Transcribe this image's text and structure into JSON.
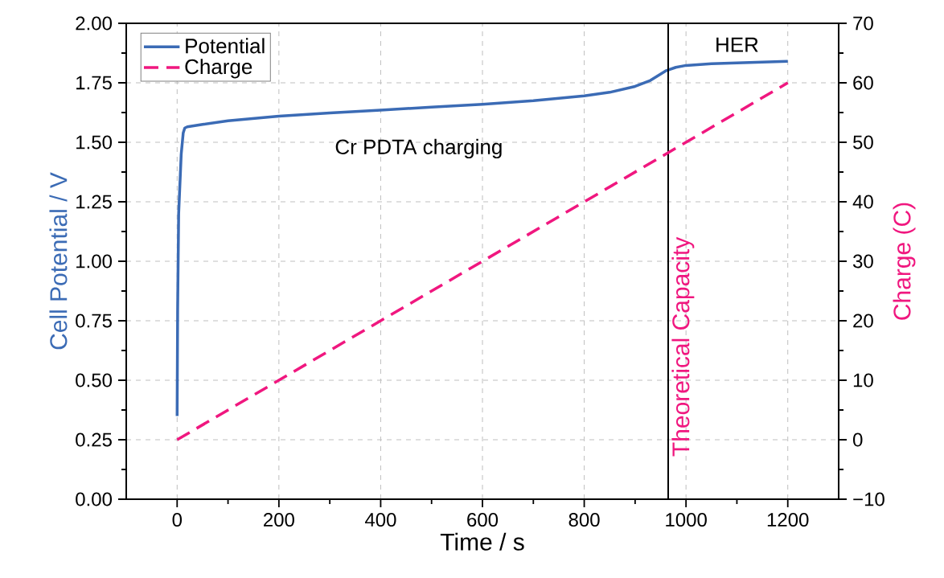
{
  "chart_data": {
    "type": "line",
    "xlabel": "Time / s",
    "ylabel": "Cell Potential / V",
    "y2label": "Charge (C)",
    "annotations": [
      "Cr PDTA charging",
      "HER"
    ],
    "xlim": [
      -100,
      1300
    ],
    "xticks": [
      0,
      200,
      400,
      600,
      800,
      1000,
      1200
    ],
    "ylim": [
      0,
      2
    ],
    "yticks": [
      {
        "value": 0,
        "label": "0.00"
      },
      {
        "value": 0.25,
        "label": "0.25"
      },
      {
        "value": 0.5,
        "label": "0.50"
      },
      {
        "value": 0.75,
        "label": "0.75"
      },
      {
        "value": 1,
        "label": "1.00"
      },
      {
        "value": 1.25,
        "label": "1.25"
      },
      {
        "value": 1.5,
        "label": "1.50"
      },
      {
        "value": 1.75,
        "label": "1.75"
      },
      {
        "value": 2,
        "label": "2.00"
      }
    ],
    "y2lim": [
      -10,
      70
    ],
    "y2ticks": [
      {
        "value": -10,
        "label": "−10"
      },
      0,
      10,
      20,
      30,
      40,
      50,
      60,
      70
    ],
    "grid": true,
    "legend": "top left",
    "ref_lines": [
      {
        "axis": "x",
        "value": 965,
        "label": "Theoretical Capacity",
        "color": "#000000"
      }
    ],
    "series": [
      {
        "name": "Potential",
        "color": "#3b6bb5",
        "line_style": "solid",
        "x": [
          0,
          1,
          3,
          8,
          12,
          15,
          20,
          50,
          100,
          200,
          300,
          400,
          500,
          600,
          700,
          800,
          850,
          900,
          930,
          960,
          980,
          1000,
          1050,
          1100,
          1200
        ],
        "values": [
          0.35,
          0.8,
          1.2,
          1.45,
          1.54,
          1.56,
          1.565,
          1.575,
          1.59,
          1.61,
          1.623,
          1.635,
          1.648,
          1.66,
          1.675,
          1.695,
          1.71,
          1.735,
          1.76,
          1.8,
          1.815,
          1.823,
          1.83,
          1.834,
          1.84
        ]
      },
      {
        "name": "Charge",
        "color": "#f0177f",
        "line_style": "dashed",
        "axis": "y2",
        "x": [
          0,
          1200
        ],
        "values": [
          0,
          60
        ]
      }
    ]
  }
}
